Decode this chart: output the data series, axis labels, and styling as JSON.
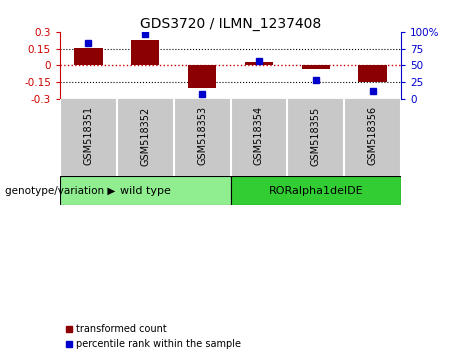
{
  "title": "GDS3720 / ILMN_1237408",
  "samples": [
    "GSM518351",
    "GSM518352",
    "GSM518353",
    "GSM518354",
    "GSM518355",
    "GSM518356"
  ],
  "bar_values": [
    0.155,
    0.225,
    -0.205,
    0.025,
    -0.03,
    -0.155
  ],
  "percentile_values": [
    83,
    97,
    7,
    56,
    28,
    12
  ],
  "ylim_left": [
    -0.3,
    0.3
  ],
  "ylim_right": [
    0,
    100
  ],
  "bar_color": "#8B0000",
  "dot_color": "#0000CC",
  "groups": [
    {
      "label": "wild type",
      "indices": [
        0,
        1,
        2
      ],
      "color": "#90EE90"
    },
    {
      "label": "RORalpha1delDE",
      "indices": [
        3,
        4,
        5
      ],
      "color": "#32CD32"
    }
  ],
  "genotype_label": "genotype/variation ▶",
  "legend_bar_label": "transformed count",
  "legend_dot_label": "percentile rank within the sample",
  "yticks_left": [
    -0.3,
    -0.15,
    0.0,
    0.15,
    0.3
  ],
  "ytick_left_labels": [
    "-0.3",
    "-0.15",
    "0",
    "0.15",
    "0.3"
  ],
  "yticks_right": [
    0,
    25,
    50,
    75,
    100
  ],
  "ytick_right_labels": [
    "0",
    "25",
    "50",
    "75",
    "100%"
  ],
  "hlines": [
    0.15,
    -0.15
  ],
  "zero_line_color": "#CC0000",
  "hline_color": "black",
  "bar_width": 0.5,
  "label_bg_color": "#C8C8C8",
  "label_sep_color": "white",
  "group_border_color": "black",
  "left_axis_color": "#CC0000",
  "right_axis_color": "#0000CC",
  "title_fontsize": 10,
  "tick_fontsize": 7.5,
  "sample_fontsize": 7,
  "group_fontsize": 8,
  "legend_fontsize": 7,
  "genotype_fontsize": 7.5
}
